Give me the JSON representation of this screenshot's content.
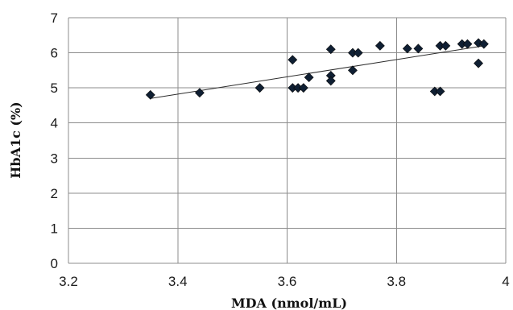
{
  "chart_data": {
    "type": "scatter",
    "xlabel": "MDA (nmol/mL)",
    "ylabel": "HbA1c (%)",
    "xlim": [
      3.2,
      4.0
    ],
    "ylim": [
      0,
      7
    ],
    "x_ticks": [
      "3.2",
      "3.4",
      "3.6",
      "3.8",
      "4"
    ],
    "y_ticks": [
      "0",
      "1",
      "2",
      "3",
      "4",
      "5",
      "6",
      "7"
    ],
    "grid": true,
    "marker": "diamond",
    "marker_color": "#0f1f33",
    "points": [
      {
        "x": 3.35,
        "y": 4.8
      },
      {
        "x": 3.44,
        "y": 4.86
      },
      {
        "x": 3.55,
        "y": 5.0
      },
      {
        "x": 3.61,
        "y": 5.8
      },
      {
        "x": 3.61,
        "y": 5.0
      },
      {
        "x": 3.62,
        "y": 5.0
      },
      {
        "x": 3.63,
        "y": 5.0
      },
      {
        "x": 3.64,
        "y": 5.3
      },
      {
        "x": 3.68,
        "y": 6.1
      },
      {
        "x": 3.68,
        "y": 5.35
      },
      {
        "x": 3.68,
        "y": 5.2
      },
      {
        "x": 3.72,
        "y": 6.0
      },
      {
        "x": 3.73,
        "y": 6.0
      },
      {
        "x": 3.72,
        "y": 5.5
      },
      {
        "x": 3.77,
        "y": 6.2
      },
      {
        "x": 3.82,
        "y": 6.12
      },
      {
        "x": 3.84,
        "y": 6.12
      },
      {
        "x": 3.87,
        "y": 4.9
      },
      {
        "x": 3.88,
        "y": 4.9
      },
      {
        "x": 3.88,
        "y": 6.2
      },
      {
        "x": 3.89,
        "y": 6.2
      },
      {
        "x": 3.92,
        "y": 6.25
      },
      {
        "x": 3.93,
        "y": 6.25
      },
      {
        "x": 3.95,
        "y": 6.28
      },
      {
        "x": 3.96,
        "y": 6.25
      },
      {
        "x": 3.95,
        "y": 5.7
      }
    ],
    "trendline": {
      "type": "linear",
      "x": [
        3.35,
        3.96
      ],
      "y": [
        4.7,
        6.2
      ]
    }
  }
}
